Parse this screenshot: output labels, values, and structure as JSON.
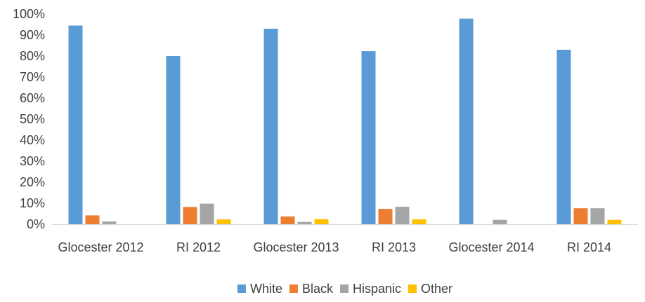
{
  "chart_data": {
    "type": "bar",
    "title": "",
    "xlabel": "",
    "ylabel": "",
    "categories": [
      "Glocester 2012",
      "RI 2012",
      "Glocester 2013",
      "RI 2013",
      "Glocester 2014",
      "RI 2014"
    ],
    "series": [
      {
        "name": "White",
        "color": "#5B9BD5",
        "values": [
          94.5,
          80.0,
          93.0,
          82.3,
          97.8,
          83.0
        ]
      },
      {
        "name": "Black",
        "color": "#ED7D31",
        "values": [
          4.2,
          8.2,
          3.7,
          7.3,
          0.0,
          7.6
        ]
      },
      {
        "name": "Hispanic",
        "color": "#A5A5A5",
        "values": [
          1.3,
          9.8,
          1.1,
          8.3,
          2.1,
          7.6
        ]
      },
      {
        "name": "Other",
        "color": "#FFC000",
        "values": [
          0.0,
          2.3,
          2.4,
          2.3,
          0.0,
          2.1
        ]
      }
    ],
    "ylim": [
      0,
      100
    ],
    "yticks": [
      "0%",
      "10%",
      "20%",
      "30%",
      "40%",
      "50%",
      "60%",
      "70%",
      "80%",
      "90%",
      "100%"
    ],
    "grid": false,
    "legend_position": "bottom"
  }
}
